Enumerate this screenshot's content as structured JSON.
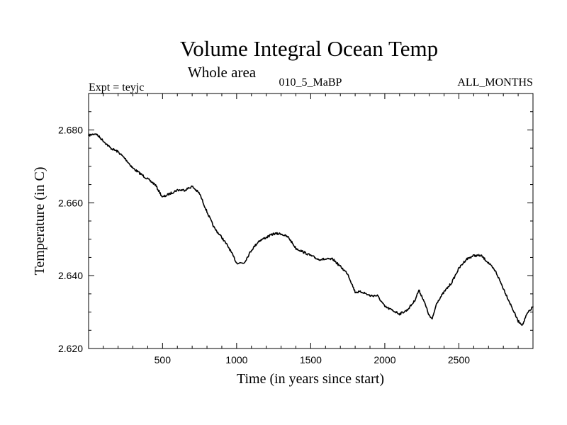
{
  "chart_data": {
    "type": "line",
    "title": "Volume Integral Ocean Temp",
    "subtitle": "Whole area",
    "annotations": {
      "experiment": "Expt = teyjc",
      "run": "010_5_MaBP",
      "months": "ALL_MONTHS"
    },
    "xlabel": "Time (in years since start)",
    "ylabel": "Temperature (in C)",
    "xlim": [
      1,
      3000
    ],
    "ylim": [
      2.62,
      2.69
    ],
    "xticks": [
      500,
      1000,
      1500,
      2000,
      2500
    ],
    "xtick_labels": [
      "500",
      "1000",
      "1500",
      "2000",
      "2500"
    ],
    "yticks": [
      2.62,
      2.64,
      2.66,
      2.68
    ],
    "ytick_labels": [
      "2.620",
      "2.640",
      "2.660",
      "2.680"
    ],
    "grid": false,
    "series": [
      {
        "name": "Volume Integral Ocean Temp",
        "color": "#000000",
        "x": [
          1,
          50,
          100,
          150,
          200,
          250,
          300,
          350,
          400,
          450,
          500,
          550,
          600,
          650,
          700,
          750,
          800,
          850,
          900,
          950,
          1000,
          1050,
          1100,
          1150,
          1200,
          1250,
          1300,
          1350,
          1400,
          1450,
          1500,
          1550,
          1600,
          1650,
          1700,
          1750,
          1800,
          1850,
          1900,
          1950,
          2000,
          2050,
          2100,
          2150,
          2200,
          2230,
          2260,
          2300,
          2320,
          2350,
          2400,
          2450,
          2500,
          2550,
          2600,
          2650,
          2700,
          2750,
          2800,
          2850,
          2900,
          2930,
          2960,
          3000
        ],
        "y": [
          2.6785,
          2.679,
          2.677,
          2.675,
          2.674,
          2.672,
          2.6695,
          2.668,
          2.6665,
          2.665,
          2.6615,
          2.6625,
          2.6635,
          2.6635,
          2.6645,
          2.6625,
          2.6575,
          2.653,
          2.6505,
          2.6475,
          2.6435,
          2.6435,
          2.647,
          2.6495,
          2.6505,
          2.6515,
          2.6515,
          2.6505,
          2.6475,
          2.6465,
          2.6455,
          2.6445,
          2.6445,
          2.6445,
          2.6425,
          2.6405,
          2.6355,
          2.6355,
          2.6345,
          2.6345,
          2.6315,
          2.6305,
          2.6295,
          2.6305,
          2.633,
          2.636,
          2.6335,
          2.629,
          2.628,
          2.6325,
          2.6355,
          2.638,
          2.642,
          2.6445,
          2.6455,
          2.6455,
          2.6435,
          2.641,
          2.6365,
          2.632,
          2.6275,
          2.6265,
          2.6295,
          2.6315
        ]
      }
    ]
  }
}
